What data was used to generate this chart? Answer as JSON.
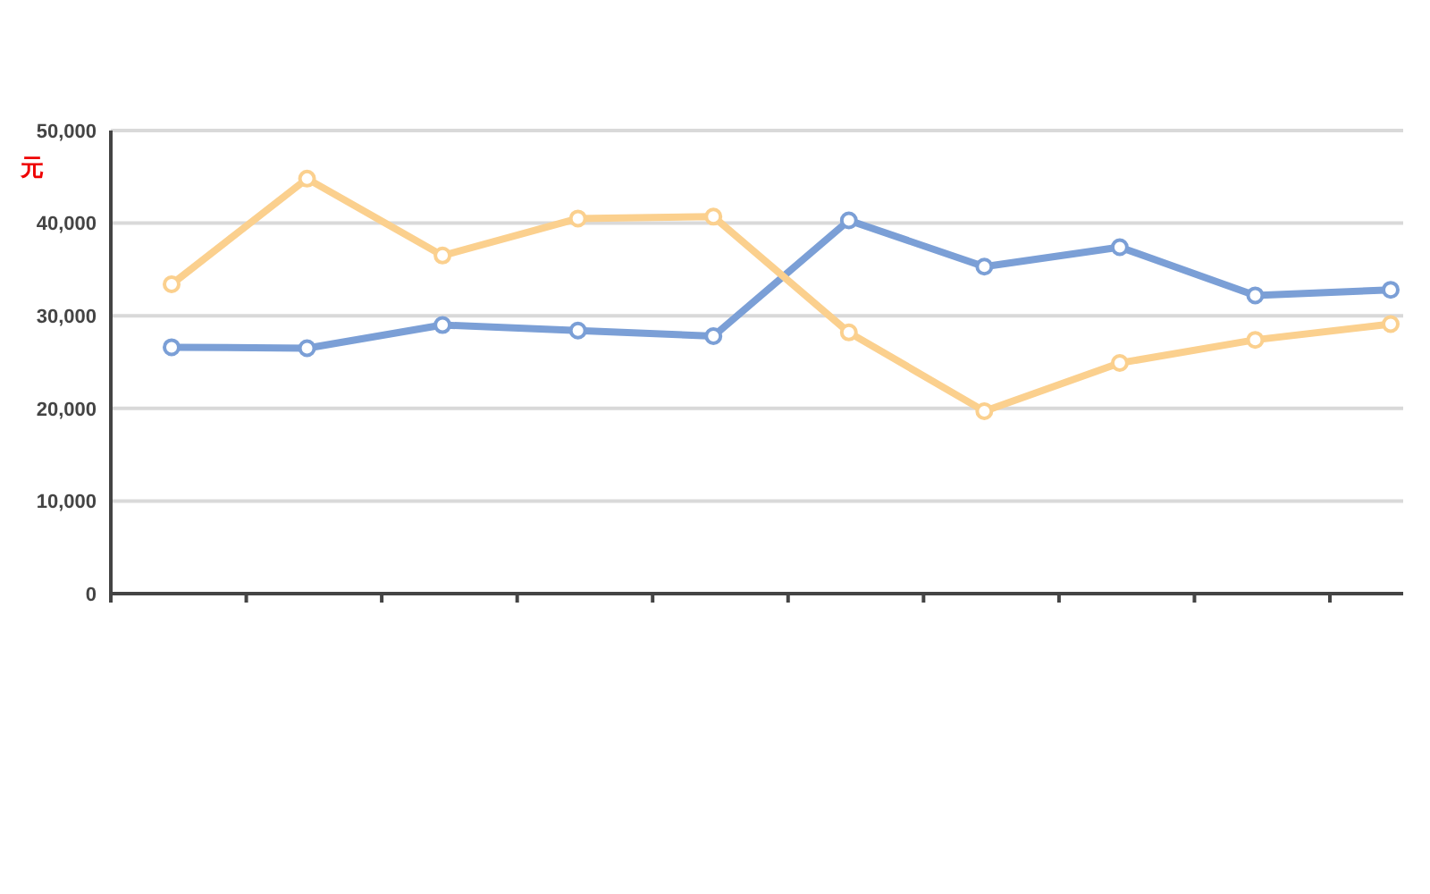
{
  "chart_data": {
    "type": "line",
    "ylabel": "元",
    "categories": [
      null,
      null,
      null,
      null,
      null,
      null,
      null,
      null,
      null,
      null
    ],
    "series": [
      {
        "color": "#7b9fd6",
        "values": [
          26600,
          26500,
          29000,
          28400,
          27800,
          40300,
          35300,
          37400,
          32200,
          32800
        ]
      },
      {
        "color": "#fbd08e",
        "values": [
          33400,
          44800,
          36500,
          40500,
          40700,
          28200,
          19700,
          24900,
          27400,
          29100
        ]
      }
    ],
    "ylim": [
      0,
      50000
    ],
    "yticks": [
      {
        "value": 0,
        "label": "0"
      },
      {
        "value": 10000,
        "label": "10,000"
      },
      {
        "value": 20000,
        "label": "20,000"
      },
      {
        "value": 30000,
        "label": "30,000"
      },
      {
        "value": 40000,
        "label": "40,000"
      },
      {
        "value": 50000,
        "label": "50,000"
      }
    ],
    "grid": "y",
    "marker": "circle",
    "line_style": "solid"
  }
}
